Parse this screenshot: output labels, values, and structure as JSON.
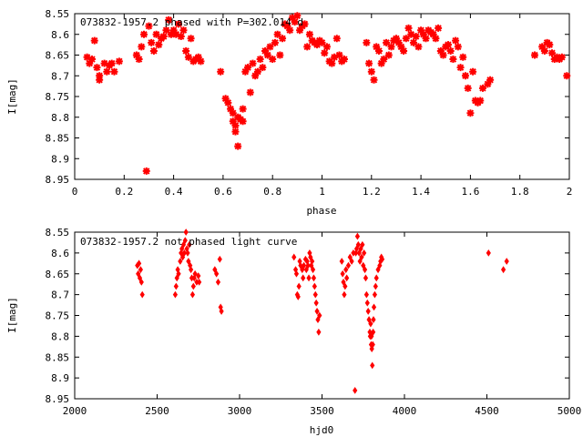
{
  "chart_data": [
    {
      "type": "scatter",
      "title": "073832-1957.2 phased with P=302.014 d",
      "xlabel": "phase",
      "ylabel": "I[mag]",
      "xlim": [
        0,
        2
      ],
      "ylim": [
        8.95,
        8.55
      ],
      "y_inverted": true,
      "grid": false,
      "marker": "star",
      "color": "#ff0000",
      "x_ticks": [
        0,
        0.2,
        0.4,
        0.6,
        0.8,
        1,
        1.2,
        1.4,
        1.6,
        1.8,
        2
      ],
      "x_tick_labels": [
        "0",
        "0.2",
        "0.4",
        "0.6",
        "0.8",
        "1",
        "1.2",
        "1.4",
        "1.6",
        "1.8",
        "2"
      ],
      "y_ticks": [
        8.55,
        8.6,
        8.65,
        8.7,
        8.75,
        8.8,
        8.85,
        8.9,
        8.95
      ],
      "y_tick_labels": [
        "8.55",
        "8.6",
        "8.65",
        "8.7",
        "8.75",
        "8.8",
        "8.85",
        "8.9",
        "8.95"
      ],
      "points": [
        [
          0.05,
          8.655
        ],
        [
          0.06,
          8.67
        ],
        [
          0.07,
          8.66
        ],
        [
          0.08,
          8.615
        ],
        [
          0.09,
          8.68
        ],
        [
          0.1,
          8.71
        ],
        [
          0.1,
          8.7
        ],
        [
          0.12,
          8.67
        ],
        [
          0.13,
          8.69
        ],
        [
          0.14,
          8.675
        ],
        [
          0.15,
          8.67
        ],
        [
          0.16,
          8.69
        ],
        [
          0.18,
          8.665
        ],
        [
          0.25,
          8.65
        ],
        [
          0.26,
          8.66
        ],
        [
          0.27,
          8.63
        ],
        [
          0.28,
          8.6
        ],
        [
          0.29,
          8.93
        ],
        [
          0.3,
          8.58
        ],
        [
          0.31,
          8.62
        ],
        [
          0.32,
          8.64
        ],
        [
          0.33,
          8.6
        ],
        [
          0.34,
          8.625
        ],
        [
          0.35,
          8.61
        ],
        [
          0.36,
          8.605
        ],
        [
          0.37,
          8.59
        ],
        [
          0.38,
          8.565
        ],
        [
          0.39,
          8.6
        ],
        [
          0.4,
          8.59
        ],
        [
          0.41,
          8.6
        ],
        [
          0.42,
          8.575
        ],
        [
          0.43,
          8.605
        ],
        [
          0.44,
          8.59
        ],
        [
          0.45,
          8.64
        ],
        [
          0.46,
          8.655
        ],
        [
          0.47,
          8.61
        ],
        [
          0.48,
          8.665
        ],
        [
          0.49,
          8.66
        ],
        [
          0.5,
          8.655
        ],
        [
          0.51,
          8.665
        ],
        [
          0.59,
          8.69
        ],
        [
          0.61,
          8.755
        ],
        [
          0.62,
          8.765
        ],
        [
          0.63,
          8.78
        ],
        [
          0.64,
          8.79
        ],
        [
          0.64,
          8.81
        ],
        [
          0.65,
          8.82
        ],
        [
          0.65,
          8.835
        ],
        [
          0.66,
          8.8
        ],
        [
          0.66,
          8.87
        ],
        [
          0.67,
          8.805
        ],
        [
          0.68,
          8.81
        ],
        [
          0.68,
          8.78
        ],
        [
          0.69,
          8.69
        ],
        [
          0.7,
          8.68
        ],
        [
          0.71,
          8.74
        ],
        [
          0.72,
          8.67
        ],
        [
          0.73,
          8.7
        ],
        [
          0.74,
          8.69
        ],
        [
          0.75,
          8.66
        ],
        [
          0.76,
          8.68
        ],
        [
          0.77,
          8.64
        ],
        [
          0.78,
          8.65
        ],
        [
          0.79,
          8.63
        ],
        [
          0.8,
          8.66
        ],
        [
          0.81,
          8.62
        ],
        [
          0.82,
          8.6
        ],
        [
          0.83,
          8.65
        ],
        [
          0.84,
          8.61
        ],
        [
          0.85,
          8.575
        ],
        [
          0.86,
          8.58
        ],
        [
          0.87,
          8.59
        ],
        [
          0.88,
          8.56
        ],
        [
          0.89,
          8.57
        ],
        [
          0.9,
          8.555
        ],
        [
          0.91,
          8.59
        ],
        [
          0.92,
          8.58
        ],
        [
          0.93,
          8.575
        ],
        [
          0.94,
          8.63
        ],
        [
          0.95,
          8.6
        ],
        [
          0.96,
          8.615
        ],
        [
          0.97,
          8.62
        ],
        [
          0.98,
          8.625
        ],
        [
          0.99,
          8.615
        ],
        [
          1.0,
          8.62
        ],
        [
          1.01,
          8.645
        ],
        [
          1.02,
          8.63
        ],
        [
          1.03,
          8.665
        ],
        [
          1.04,
          8.67
        ],
        [
          1.05,
          8.655
        ],
        [
          1.06,
          8.61
        ],
        [
          1.07,
          8.65
        ],
        [
          1.08,
          8.665
        ],
        [
          1.09,
          8.66
        ],
        [
          1.18,
          8.62
        ],
        [
          1.19,
          8.67
        ],
        [
          1.2,
          8.69
        ],
        [
          1.21,
          8.71
        ],
        [
          1.22,
          8.63
        ],
        [
          1.23,
          8.64
        ],
        [
          1.24,
          8.67
        ],
        [
          1.25,
          8.66
        ],
        [
          1.26,
          8.62
        ],
        [
          1.27,
          8.65
        ],
        [
          1.28,
          8.63
        ],
        [
          1.29,
          8.615
        ],
        [
          1.3,
          8.61
        ],
        [
          1.31,
          8.62
        ],
        [
          1.32,
          8.63
        ],
        [
          1.33,
          8.64
        ],
        [
          1.34,
          8.61
        ],
        [
          1.35,
          8.585
        ],
        [
          1.36,
          8.6
        ],
        [
          1.37,
          8.62
        ],
        [
          1.38,
          8.605
        ],
        [
          1.39,
          8.63
        ],
        [
          1.4,
          8.59
        ],
        [
          1.41,
          8.6
        ],
        [
          1.42,
          8.61
        ],
        [
          1.43,
          8.59
        ],
        [
          1.44,
          8.595
        ],
        [
          1.45,
          8.6
        ],
        [
          1.46,
          8.61
        ],
        [
          1.47,
          8.585
        ],
        [
          1.48,
          8.64
        ],
        [
          1.49,
          8.65
        ],
        [
          1.5,
          8.63
        ],
        [
          1.51,
          8.625
        ],
        [
          1.52,
          8.64
        ],
        [
          1.53,
          8.66
        ],
        [
          1.54,
          8.615
        ],
        [
          1.55,
          8.63
        ],
        [
          1.56,
          8.68
        ],
        [
          1.57,
          8.655
        ],
        [
          1.58,
          8.7
        ],
        [
          1.59,
          8.73
        ],
        [
          1.6,
          8.79
        ],
        [
          1.61,
          8.69
        ],
        [
          1.62,
          8.76
        ],
        [
          1.63,
          8.765
        ],
        [
          1.64,
          8.76
        ],
        [
          1.65,
          8.73
        ],
        [
          1.67,
          8.72
        ],
        [
          1.68,
          8.71
        ],
        [
          1.86,
          8.65
        ],
        [
          1.89,
          8.63
        ],
        [
          1.9,
          8.64
        ],
        [
          1.91,
          8.62
        ],
        [
          1.92,
          8.625
        ],
        [
          1.93,
          8.645
        ],
        [
          1.94,
          8.66
        ],
        [
          1.95,
          8.655
        ],
        [
          1.96,
          8.66
        ],
        [
          1.97,
          8.655
        ],
        [
          1.99,
          8.7
        ]
      ]
    },
    {
      "type": "scatter",
      "title": "073832-1957.2 not phased light curve",
      "xlabel": "hjd0",
      "ylabel": "I[mag]",
      "xlim": [
        2000,
        5000
      ],
      "ylim": [
        8.95,
        8.55
      ],
      "y_inverted": true,
      "grid": false,
      "marker": "diamond",
      "color": "#ff0000",
      "x_ticks": [
        2000,
        2500,
        3000,
        3500,
        4000,
        4500,
        5000
      ],
      "x_tick_labels": [
        "2000",
        "2500",
        "3000",
        "3500",
        "4000",
        "4500",
        "5000"
      ],
      "y_ticks": [
        8.55,
        8.6,
        8.65,
        8.7,
        8.75,
        8.8,
        8.85,
        8.9,
        8.95
      ],
      "y_tick_labels": [
        "8.55",
        "8.6",
        "8.65",
        "8.7",
        "8.75",
        "8.8",
        "8.85",
        "8.9",
        "8.95"
      ],
      "points": [
        [
          2380,
          8.63
        ],
        [
          2385,
          8.65
        ],
        [
          2390,
          8.625
        ],
        [
          2395,
          8.66
        ],
        [
          2400,
          8.64
        ],
        [
          2405,
          8.67
        ],
        [
          2410,
          8.7
        ],
        [
          2610,
          8.7
        ],
        [
          2615,
          8.68
        ],
        [
          2620,
          8.66
        ],
        [
          2625,
          8.64
        ],
        [
          2630,
          8.65
        ],
        [
          2640,
          8.62
        ],
        [
          2645,
          8.6
        ],
        [
          2650,
          8.59
        ],
        [
          2655,
          8.61
        ],
        [
          2660,
          8.58
        ],
        [
          2665,
          8.6
        ],
        [
          2670,
          8.57
        ],
        [
          2675,
          8.55
        ],
        [
          2680,
          8.59
        ],
        [
          2685,
          8.6
        ],
        [
          2690,
          8.62
        ],
        [
          2695,
          8.58
        ],
        [
          2700,
          8.63
        ],
        [
          2705,
          8.64
        ],
        [
          2710,
          8.66
        ],
        [
          2715,
          8.7
        ],
        [
          2720,
          8.68
        ],
        [
          2725,
          8.66
        ],
        [
          2730,
          8.65
        ],
        [
          2740,
          8.67
        ],
        [
          2750,
          8.655
        ],
        [
          2755,
          8.67
        ],
        [
          2850,
          8.64
        ],
        [
          2860,
          8.65
        ],
        [
          2870,
          8.67
        ],
        [
          2880,
          8.615
        ],
        [
          2885,
          8.73
        ],
        [
          2890,
          8.74
        ],
        [
          3330,
          8.61
        ],
        [
          3340,
          8.64
        ],
        [
          3345,
          8.65
        ],
        [
          3350,
          8.7
        ],
        [
          3355,
          8.705
        ],
        [
          3360,
          8.68
        ],
        [
          3365,
          8.62
        ],
        [
          3370,
          8.63
        ],
        [
          3380,
          8.64
        ],
        [
          3385,
          8.66
        ],
        [
          3390,
          8.63
        ],
        [
          3400,
          8.615
        ],
        [
          3405,
          8.64
        ],
        [
          3410,
          8.62
        ],
        [
          3415,
          8.63
        ],
        [
          3420,
          8.66
        ],
        [
          3425,
          8.6
        ],
        [
          3430,
          8.61
        ],
        [
          3435,
          8.63
        ],
        [
          3440,
          8.62
        ],
        [
          3445,
          8.64
        ],
        [
          3450,
          8.66
        ],
        [
          3455,
          8.68
        ],
        [
          3460,
          8.7
        ],
        [
          3465,
          8.72
        ],
        [
          3470,
          8.74
        ],
        [
          3475,
          8.76
        ],
        [
          3480,
          8.79
        ],
        [
          3485,
          8.75
        ],
        [
          3620,
          8.62
        ],
        [
          3625,
          8.65
        ],
        [
          3630,
          8.67
        ],
        [
          3635,
          8.7
        ],
        [
          3640,
          8.68
        ],
        [
          3645,
          8.64
        ],
        [
          3650,
          8.66
        ],
        [
          3660,
          8.63
        ],
        [
          3670,
          8.61
        ],
        [
          3680,
          8.62
        ],
        [
          3690,
          8.6
        ],
        [
          3700,
          8.93
        ],
        [
          3705,
          8.6
        ],
        [
          3710,
          8.59
        ],
        [
          3715,
          8.56
        ],
        [
          3720,
          8.58
        ],
        [
          3725,
          8.6
        ],
        [
          3730,
          8.62
        ],
        [
          3735,
          8.59
        ],
        [
          3740,
          8.61
        ],
        [
          3745,
          8.58
        ],
        [
          3750,
          8.63
        ],
        [
          3755,
          8.6
        ],
        [
          3760,
          8.64
        ],
        [
          3765,
          8.66
        ],
        [
          3770,
          8.7
        ],
        [
          3775,
          8.72
        ],
        [
          3780,
          8.74
        ],
        [
          3785,
          8.76
        ],
        [
          3790,
          8.79
        ],
        [
          3792,
          8.8
        ],
        [
          3795,
          8.77
        ],
        [
          3798,
          8.82
        ],
        [
          3800,
          8.8
        ],
        [
          3802,
          8.83
        ],
        [
          3805,
          8.87
        ],
        [
          3808,
          8.82
        ],
        [
          3810,
          8.79
        ],
        [
          3812,
          8.76
        ],
        [
          3815,
          8.73
        ],
        [
          3820,
          8.7
        ],
        [
          3825,
          8.68
        ],
        [
          3830,
          8.66
        ],
        [
          3840,
          8.64
        ],
        [
          3850,
          8.63
        ],
        [
          3855,
          8.62
        ],
        [
          3860,
          8.61
        ],
        [
          3865,
          8.615
        ],
        [
          4510,
          8.6
        ],
        [
          4600,
          8.64
        ],
        [
          4620,
          8.62
        ]
      ]
    }
  ]
}
